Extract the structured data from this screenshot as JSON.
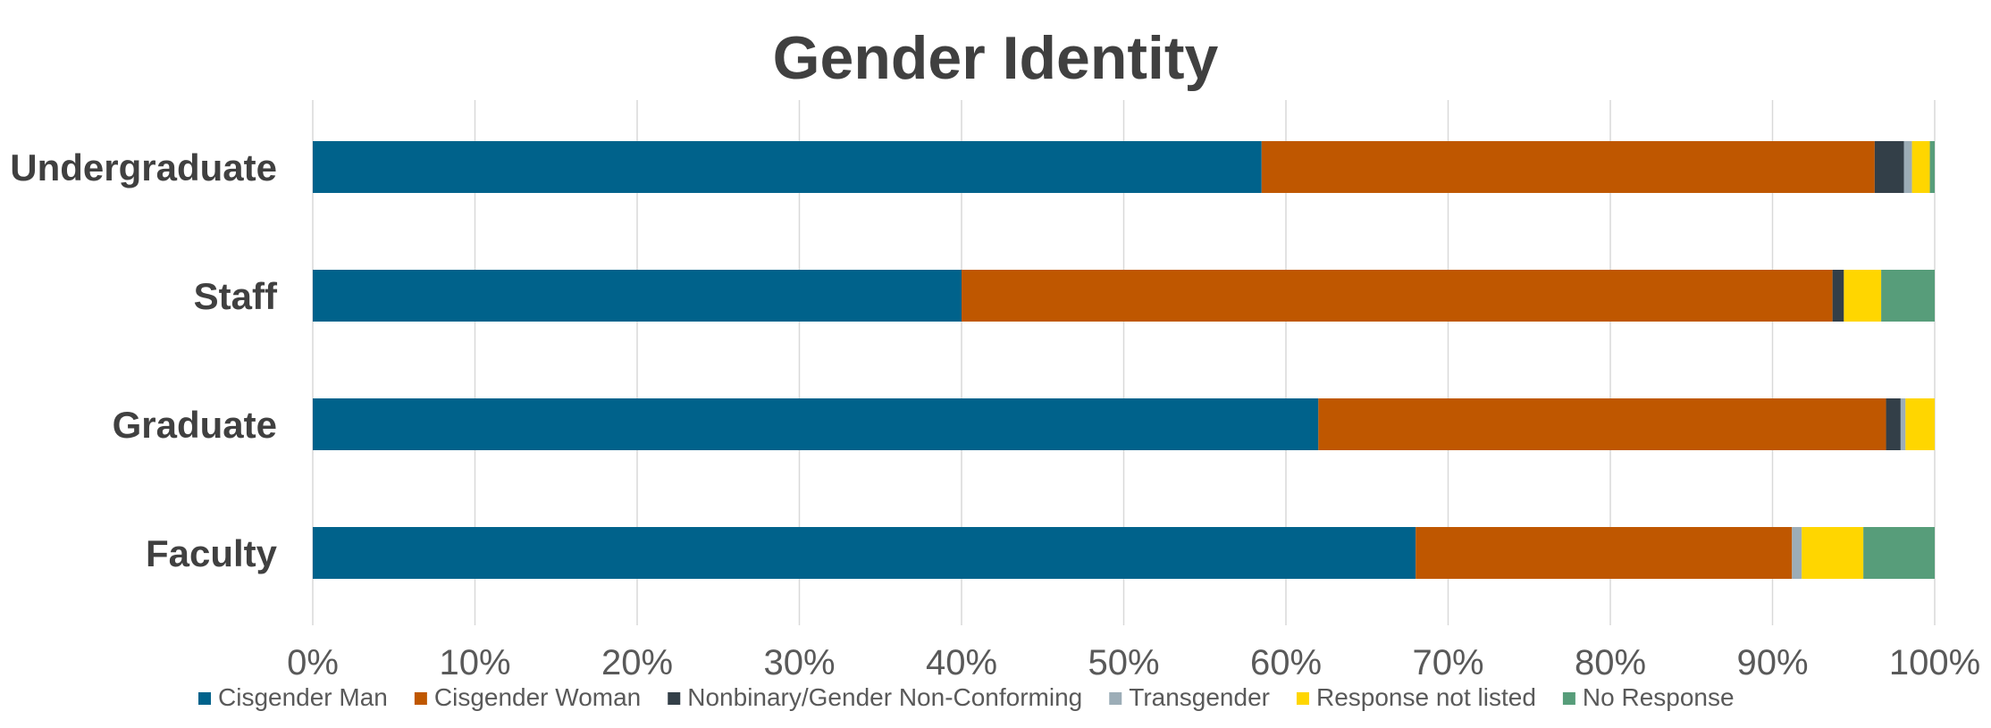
{
  "chart_data": {
    "type": "bar",
    "orientation": "horizontal",
    "stacked": "percent",
    "title": "Gender Identity",
    "xlabel": "",
    "ylabel": "",
    "xlim": [
      0,
      100
    ],
    "x_ticks": [
      "0%",
      "10%",
      "20%",
      "30%",
      "40%",
      "50%",
      "60%",
      "70%",
      "80%",
      "90%",
      "100%"
    ],
    "grid": true,
    "legend_position": "bottom",
    "categories": [
      "Undergraduate",
      "Staff",
      "Graduate",
      "Faculty"
    ],
    "series": [
      {
        "name": "Cisgender Man",
        "color": "#00628b",
        "values": [
          58.5,
          40.0,
          62.0,
          68.0
        ]
      },
      {
        "name": "Cisgender Woman",
        "color": "#bf5700",
        "values": [
          37.8,
          53.7,
          35.0,
          23.2
        ]
      },
      {
        "name": "Nonbinary/Gender Non-Conforming",
        "color": "#333f48",
        "values": [
          1.8,
          0.7,
          0.9,
          0.0
        ]
      },
      {
        "name": "Transgender",
        "color": "#9cadb7",
        "values": [
          0.5,
          0.0,
          0.3,
          0.6
        ]
      },
      {
        "name": "Response not listed",
        "color": "#ffd600",
        "values": [
          1.1,
          2.3,
          1.8,
          3.8
        ]
      },
      {
        "name": "No Response",
        "color": "#579d7a",
        "values": [
          0.3,
          3.3,
          0.0,
          4.4
        ]
      }
    ]
  },
  "colors": {
    "text": "#404040",
    "tick_text": "#595959",
    "grid": "#d9d9d9"
  }
}
